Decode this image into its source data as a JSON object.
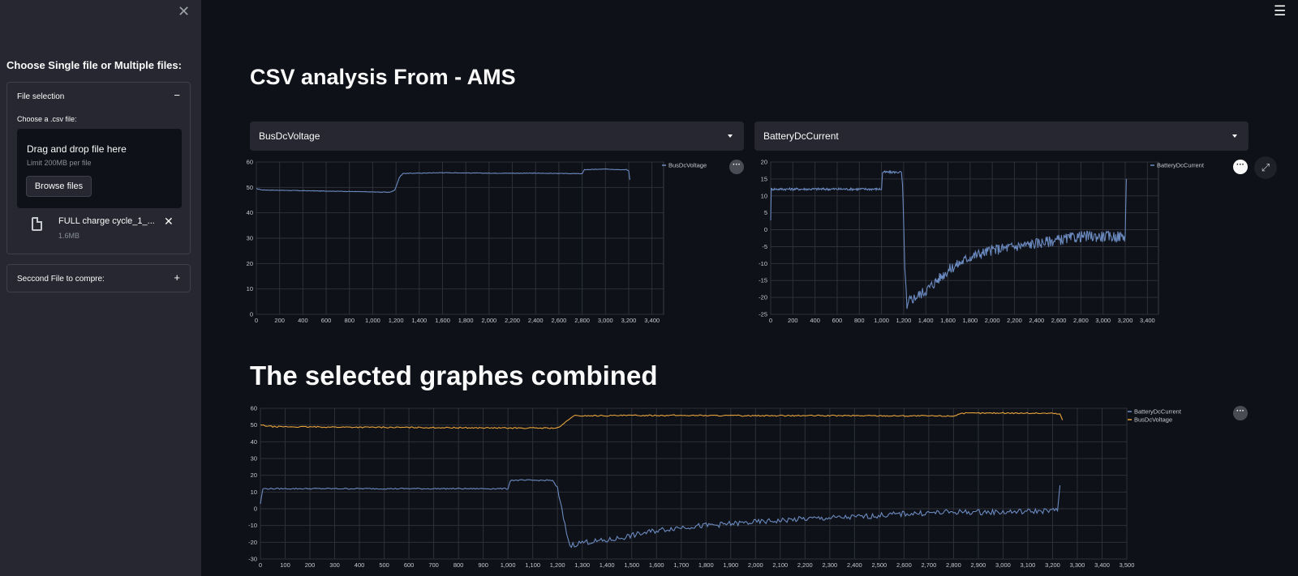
{
  "sidebar": {
    "title": "Choose Single file or Multiple files:",
    "expander1": {
      "label": "File selection",
      "toggle": "−",
      "uploader_label": "Choose a .csv file:",
      "drop_text": "Drag and drop file here",
      "limit_text": "Limit 200MB per file",
      "browse_label": "Browse files",
      "file_name": "FULL charge cycle_1_...",
      "file_size": "1.6MB"
    },
    "expander2": {
      "label": "Seccond File to compre:",
      "toggle": "+"
    }
  },
  "main": {
    "title": "CSV analysis From - AMS",
    "select_left": "BusDcVoltage",
    "select_right": "BatteryDcCurrent",
    "combined_title": "The selected graphes combined"
  },
  "colors": {
    "blue": "#6b8ac0",
    "orange": "#e8a33d"
  },
  "chart_data": [
    {
      "type": "line",
      "series": [
        {
          "name": "BusDcVoltage",
          "color": "#6b8ac0",
          "points": [
            [
              0,
              49.5
            ],
            [
              50,
              49
            ],
            [
              400,
              48.7
            ],
            [
              800,
              48.4
            ],
            [
              1000,
              48.2
            ],
            [
              1150,
              48.1
            ],
            [
              1190,
              49
            ],
            [
              1230,
              54
            ],
            [
              1260,
              55.5
            ],
            [
              1600,
              55.8
            ],
            [
              2000,
              55.6
            ],
            [
              2400,
              55.6
            ],
            [
              2800,
              55.4
            ],
            [
              2820,
              57
            ],
            [
              3000,
              57.2
            ],
            [
              3150,
              57
            ],
            [
              3180,
              57
            ],
            [
              3200,
              56.5
            ],
            [
              3210,
              53
            ]
          ]
        }
      ],
      "xlim": [
        0,
        3500
      ],
      "ylim": [
        0,
        60
      ],
      "xticks": [
        0,
        200,
        400,
        600,
        800,
        1000,
        1200,
        1400,
        1600,
        1800,
        2000,
        2200,
        2400,
        2600,
        2800,
        3000,
        3200,
        3400
      ],
      "yticks": [
        0,
        10,
        20,
        30,
        40,
        50,
        60
      ],
      "legend": "top-right",
      "grid": true
    },
    {
      "type": "line",
      "series": [
        {
          "name": "BatteryDcCurrent",
          "color": "#6b8ac0",
          "points": [
            [
              0,
              3
            ],
            [
              5,
              12
            ],
            [
              20,
              12
            ],
            [
              1000,
              12
            ],
            [
              1010,
              17
            ],
            [
              1180,
              17
            ],
            [
              1190,
              13
            ],
            [
              1210,
              -10
            ],
            [
              1230,
              -24
            ],
            [
              1250,
              -21
            ],
            [
              1300,
              -20
            ],
            [
              1400,
              -18
            ],
            [
              1500,
              -15
            ],
            [
              1600,
              -12
            ],
            [
              1700,
              -10
            ],
            [
              1800,
              -8
            ],
            [
              1900,
              -7
            ],
            [
              2000,
              -6
            ],
            [
              2200,
              -5
            ],
            [
              2400,
              -4
            ],
            [
              2600,
              -3
            ],
            [
              2800,
              -2
            ],
            [
              3000,
              -2
            ],
            [
              3200,
              -2
            ],
            [
              3210,
              15
            ]
          ]
        }
      ],
      "xlim": [
        0,
        3500
      ],
      "ylim": [
        -25,
        20
      ],
      "xticks": [
        0,
        200,
        400,
        600,
        800,
        1000,
        1200,
        1400,
        1600,
        1800,
        2000,
        2200,
        2400,
        2600,
        2800,
        3000,
        3200,
        3400
      ],
      "yticks": [
        -25,
        -20,
        -15,
        -10,
        -5,
        0,
        5,
        10,
        15,
        20
      ],
      "legend": "top-right",
      "grid": true
    },
    {
      "type": "line",
      "series": [
        {
          "name": "BatteryDcCurrent",
          "color": "#6b8ac0",
          "points": [
            [
              0,
              3
            ],
            [
              10,
              12
            ],
            [
              30,
              12
            ],
            [
              1000,
              12
            ],
            [
              1010,
              17
            ],
            [
              1180,
              17
            ],
            [
              1200,
              12
            ],
            [
              1230,
              -10
            ],
            [
              1250,
              -22
            ],
            [
              1300,
              -20
            ],
            [
              1400,
              -19
            ],
            [
              1500,
              -16
            ],
            [
              1600,
              -13
            ],
            [
              1700,
              -11
            ],
            [
              1800,
              -10
            ],
            [
              1900,
              -9
            ],
            [
              2000,
              -8
            ],
            [
              2200,
              -6
            ],
            [
              2400,
              -5
            ],
            [
              2600,
              -3
            ],
            [
              2800,
              -2
            ],
            [
              3000,
              -2
            ],
            [
              3220,
              -1
            ],
            [
              3230,
              14
            ]
          ]
        },
        {
          "name": "BusDcVoltage",
          "color": "#e8a33d",
          "points": [
            [
              0,
              50
            ],
            [
              50,
              49
            ],
            [
              400,
              48.7
            ],
            [
              800,
              48.4
            ],
            [
              1000,
              48.2
            ],
            [
              1200,
              48.2
            ],
            [
              1220,
              50
            ],
            [
              1250,
              54
            ],
            [
              1270,
              55.5
            ],
            [
              1600,
              55.8
            ],
            [
              2000,
              55.6
            ],
            [
              2400,
              55.6
            ],
            [
              2800,
              55.4
            ],
            [
              2830,
              57
            ],
            [
              3000,
              57.2
            ],
            [
              3200,
              57
            ],
            [
              3230,
              56.5
            ],
            [
              3240,
              53
            ]
          ]
        }
      ],
      "xlim": [
        0,
        3500
      ],
      "ylim": [
        -30,
        60
      ],
      "xticks": [
        0,
        100,
        200,
        300,
        400,
        500,
        600,
        700,
        800,
        900,
        1000,
        1100,
        1200,
        1300,
        1400,
        1500,
        1600,
        1700,
        1800,
        1900,
        2000,
        2100,
        2200,
        2300,
        2400,
        2500,
        2600,
        2700,
        2800,
        2900,
        3000,
        3100,
        3200,
        3300,
        3400,
        3500
      ],
      "yticks": [
        -30,
        -20,
        -10,
        0,
        10,
        20,
        30,
        40,
        50,
        60
      ],
      "legend": "top-right",
      "grid": true
    }
  ]
}
